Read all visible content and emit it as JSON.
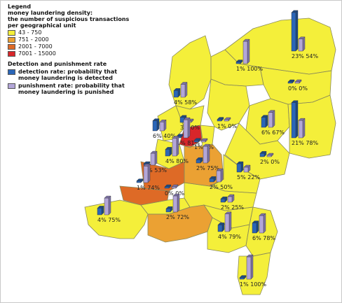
{
  "legend": {
    "title": "Legend",
    "subtitle_lines": [
      "money laundering density:",
      "the number of suspicious transactions",
      "per geographical unit"
    ],
    "classes": [
      {
        "label": "43 - 750",
        "color": "#f4ef3a"
      },
      {
        "label": "751 - 2000",
        "color": "#eba133"
      },
      {
        "label": "2001 - 7000",
        "color": "#de6a26"
      },
      {
        "label": "7001 - 15000",
        "color": "#d8262a"
      }
    ],
    "rates_title": "Detection and punishment rate",
    "detection_label": "detection rate: probability that money laundering is detected",
    "punishment_label": "punishment rate: probability that money laundering is punished",
    "detection_color": "#2a66b8",
    "punishment_color": "#b3a6d8"
  },
  "regions": [
    {
      "id": "groningen",
      "density_class": 0,
      "detection": 23,
      "punishment": 54
    },
    {
      "id": "friesland",
      "density_class": 0,
      "detection": 1,
      "punishment": 100
    },
    {
      "id": "drenthe",
      "density_class": 0,
      "detection": 0,
      "punishment": 0
    },
    {
      "id": "noord-holland-noord",
      "density_class": 0,
      "detection": 4,
      "punishment": 58
    },
    {
      "id": "zaanstreek-waterland",
      "density_class": 0,
      "detection": 3,
      "punishment": 0
    },
    {
      "id": "kennemerland",
      "density_class": 0,
      "detection": 6,
      "punishment": 40
    },
    {
      "id": "amsterdam-amstelland",
      "density_class": 3,
      "detection": 1,
      "punishment": 81
    },
    {
      "id": "gooi-en-vechtstreek",
      "density_class": 0,
      "detection": 1,
      "punishment": 0
    },
    {
      "id": "flevoland",
      "density_class": 0,
      "detection": 1,
      "punishment": 0
    },
    {
      "id": "ijsselland",
      "density_class": 0,
      "detection": 6,
      "punishment": 67
    },
    {
      "id": "twente",
      "density_class": 0,
      "detection": 21,
      "punishment": 78
    },
    {
      "id": "haaglanden",
      "density_class": 0,
      "detection": 4,
      "punishment": 80
    },
    {
      "id": "hollands-midden",
      "density_class": 2,
      "detection": 0,
      "punishment": 53
    },
    {
      "id": "utrecht",
      "density_class": 1,
      "detection": 2,
      "punishment": 75
    },
    {
      "id": "noord-oost-gelderland",
      "density_class": 0,
      "detection": 2,
      "punishment": 0
    },
    {
      "id": "gelderland-midden",
      "density_class": 0,
      "detection": 5,
      "punishment": 22
    },
    {
      "id": "rotterdam-rijnmond",
      "density_class": 2,
      "detection": 1,
      "punishment": 74
    },
    {
      "id": "zuid-holland-zuid",
      "density_class": 0,
      "detection": 0,
      "punishment": 0
    },
    {
      "id": "gelderland-zuid",
      "density_class": 0,
      "detection": 2,
      "punishment": 50
    },
    {
      "id": "zeeland",
      "density_class": 0,
      "detection": 4,
      "punishment": 75
    },
    {
      "id": "midden-west-brabant",
      "density_class": 1,
      "detection": 2,
      "punishment": 72
    },
    {
      "id": "brabant-noord",
      "density_class": 0,
      "detection": 2,
      "punishment": 25
    },
    {
      "id": "brabant-zuid-oost",
      "density_class": 0,
      "detection": 4,
      "punishment": 79
    },
    {
      "id": "limburg-noord",
      "density_class": 0,
      "detection": 6,
      "punishment": 78
    },
    {
      "id": "limburg-zuid",
      "density_class": 0,
      "detection": 1,
      "punishment": 100
    }
  ]
}
